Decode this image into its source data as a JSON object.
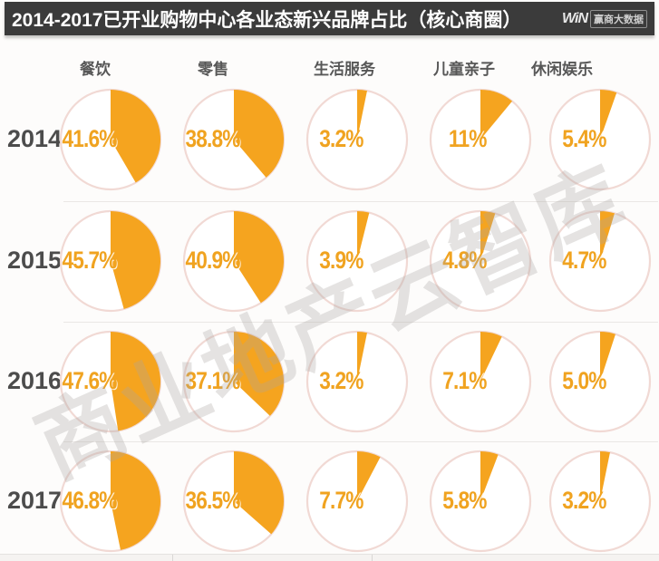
{
  "title_bar": {
    "title": "2014-2017已开业购物中心各业态新兴品牌占比（核心商圈）",
    "logo": {
      "mark": "WiN",
      "name": "赢商大数据"
    }
  },
  "watermark": "商业地产云智库",
  "chart_data": {
    "type": "pie",
    "title": "2014-2017已开业购物中心各业态新兴品牌占比（核心商圈）",
    "unit": "%",
    "categories": [
      "餐饮",
      "零售",
      "生活服务",
      "儿童亲子",
      "休闲娱乐"
    ],
    "series": [
      {
        "name": "2014",
        "values": [
          41.6,
          38.8,
          3.2,
          11,
          5.4
        ],
        "labels": [
          "41.6%",
          "38.8%",
          "3.2%",
          "11%",
          "5.4%"
        ]
      },
      {
        "name": "2015",
        "values": [
          45.7,
          40.9,
          3.9,
          4.8,
          4.7
        ],
        "labels": [
          "45.7%",
          "40.9%",
          "3.9%",
          "4.8%",
          "4.7%"
        ]
      },
      {
        "name": "2016",
        "values": [
          47.6,
          37.1,
          3.2,
          7.1,
          5.0
        ],
        "labels": [
          "47.6%",
          "37.1%",
          "3.2%",
          "7.1%",
          "5.0%"
        ]
      },
      {
        "name": "2017",
        "values": [
          46.8,
          36.5,
          7.7,
          5.8,
          3.2
        ],
        "labels": [
          "46.8%",
          "36.5%",
          "7.7%",
          "5.8%",
          "3.2%"
        ]
      }
    ],
    "layout": {
      "wedge_start": "12-oclock-clockwise",
      "legend_position": "none",
      "grid": "row-dividers"
    },
    "colors": {
      "wedge": "#f5a41f",
      "ring": "#f1d9d4",
      "value_label": "#f0a320",
      "title_bar_bg": "#3b3b3b",
      "title_text": "#ffffff",
      "header_text": "#575757",
      "year_text": "#4c4c4c"
    }
  }
}
